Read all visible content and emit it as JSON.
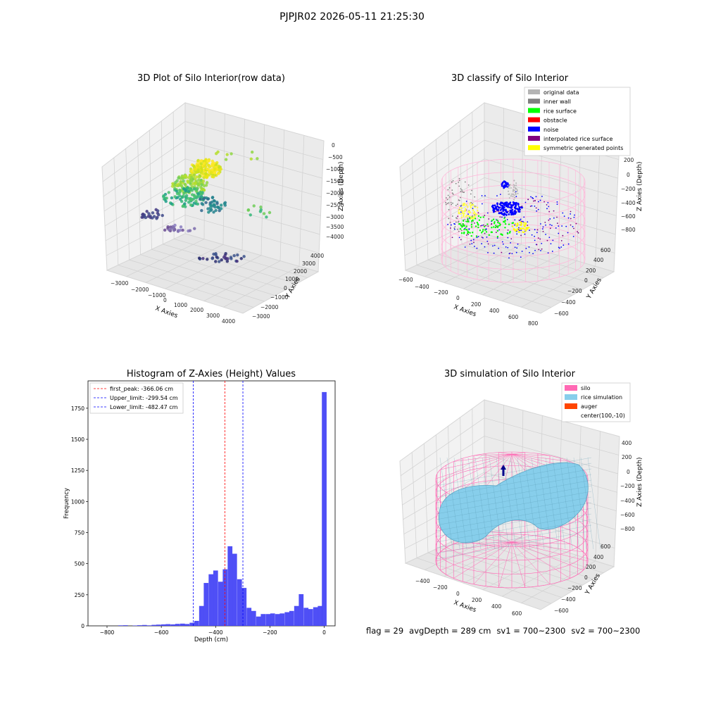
{
  "suptitle": "PJPJR02 2026-05-11 21:25:30",
  "footer": {
    "flag": "flag = 29",
    "avg_depth": "avgDepth = 289 cm",
    "sv1": "sv1 = 700~2300",
    "sv2": "sv2 = 700~2300"
  },
  "chart_data": [
    {
      "type": "scatter",
      "dimensions": 3,
      "title": "3D Plot of Silo Interior(row data)",
      "xlabel": "X Axies",
      "ylabel": "Y Axies",
      "zlabel": "Z Axies (Depth)",
      "x_ticks": [
        "−3000",
        "−2000",
        "−1000",
        "0",
        "1000",
        "2000",
        "3000",
        "4000"
      ],
      "y_ticks": [
        "−3000",
        "−2000",
        "−1000",
        "0",
        "1000",
        "2000",
        "3000",
        "4000"
      ],
      "z_ticks": [
        "0",
        "−500",
        "−1000",
        "−1500",
        "−2000",
        "−2500",
        "−3000",
        "−3500",
        "−4000"
      ],
      "xlim": [
        -3500,
        4500
      ],
      "ylim": [
        -3500,
        4500
      ],
      "zlim": [
        -4000,
        0
      ],
      "grid": true,
      "colormap": "viridis"
    },
    {
      "type": "scatter",
      "dimensions": 3,
      "title": "3D classify of Silo Interior",
      "xlabel": "X Axies",
      "ylabel": "Y Axies",
      "zlabel": "Z Axies (Depth)",
      "x_ticks": [
        "−600",
        "−400",
        "−200",
        "0",
        "200",
        "400",
        "600",
        "800"
      ],
      "y_ticks": [
        "−600",
        "−400",
        "−200",
        "0",
        "200",
        "400",
        "600"
      ],
      "z_ticks": [
        "200",
        "0",
        "−200",
        "−400",
        "−600",
        "−800"
      ],
      "grid": true,
      "legend_position": "top-right",
      "legend": [
        {
          "label": "original data",
          "color": "#b4b4b4"
        },
        {
          "label": "inner wall",
          "color": "#808080"
        },
        {
          "label": "rice surface",
          "color": "#00ff00"
        },
        {
          "label": "obstacle",
          "color": "#ff0000"
        },
        {
          "label": "noise",
          "color": "#0000ff"
        },
        {
          "label": "interpolated rice surface",
          "color": "#800080"
        },
        {
          "label": "symmetric generated points",
          "color": "#ffff00"
        }
      ]
    },
    {
      "type": "bar",
      "title": "Histogram of Z-Axies (Height) Values",
      "xlabel": "Depth (cm)",
      "ylabel": "Frequency",
      "xlim": [
        -870,
        40
      ],
      "ylim": [
        0,
        1970
      ],
      "x_ticks": [
        -800,
        -600,
        -400,
        -200,
        0
      ],
      "x_tick_labels": [
        "−800",
        "−600",
        "−400",
        "−200",
        "0"
      ],
      "y_ticks": [
        0,
        250,
        500,
        750,
        1000,
        1250,
        1500,
        1750
      ],
      "bar_color": "#4646f5",
      "bin_width": 17.5,
      "bins": [
        {
          "x": -750,
          "v": 4
        },
        {
          "x": -732,
          "v": 5
        },
        {
          "x": -697,
          "v": 3
        },
        {
          "x": -680,
          "v": 5
        },
        {
          "x": -662,
          "v": 7
        },
        {
          "x": -645,
          "v": 4
        },
        {
          "x": -627,
          "v": 8
        },
        {
          "x": -610,
          "v": 10
        },
        {
          "x": -592,
          "v": 12
        },
        {
          "x": -575,
          "v": 14
        },
        {
          "x": -557,
          "v": 12
        },
        {
          "x": -540,
          "v": 16
        },
        {
          "x": -522,
          "v": 18
        },
        {
          "x": -505,
          "v": 15
        },
        {
          "x": -487,
          "v": 25
        },
        {
          "x": -470,
          "v": 40
        },
        {
          "x": -452,
          "v": 160
        },
        {
          "x": -435,
          "v": 345
        },
        {
          "x": -417,
          "v": 415
        },
        {
          "x": -400,
          "v": 445
        },
        {
          "x": -382,
          "v": 355
        },
        {
          "x": -365,
          "v": 455
        },
        {
          "x": -347,
          "v": 640
        },
        {
          "x": -330,
          "v": 580
        },
        {
          "x": -312,
          "v": 375
        },
        {
          "x": -295,
          "v": 305
        },
        {
          "x": -277,
          "v": 145
        },
        {
          "x": -260,
          "v": 120
        },
        {
          "x": -242,
          "v": 75
        },
        {
          "x": -225,
          "v": 95
        },
        {
          "x": -207,
          "v": 95
        },
        {
          "x": -190,
          "v": 100
        },
        {
          "x": -172,
          "v": 95
        },
        {
          "x": -155,
          "v": 100
        },
        {
          "x": -137,
          "v": 110
        },
        {
          "x": -120,
          "v": 120
        },
        {
          "x": -102,
          "v": 160
        },
        {
          "x": -85,
          "v": 255
        },
        {
          "x": -67,
          "v": 145
        },
        {
          "x": -50,
          "v": 135
        },
        {
          "x": -32,
          "v": 150
        },
        {
          "x": -15,
          "v": 160
        },
        {
          "x": 0,
          "v": 1880
        }
      ],
      "vlines": [
        {
          "label": "first_peak: -366.06 cm",
          "x": -366.06,
          "color": "#ff0000"
        },
        {
          "label": "Upper_limit: -299.54 cm",
          "x": -299.54,
          "color": "#0000ff"
        },
        {
          "label": "Lower_limit: -482.47 cm",
          "x": -482.47,
          "color": "#0000ff"
        }
      ],
      "legend_position": "top-left"
    },
    {
      "type": "surface",
      "dimensions": 3,
      "title": "3D simulation of Silo Interior",
      "xlabel": "X Axies",
      "ylabel": "Y Axies",
      "zlabel": "Z Axies (Depth)",
      "x_ticks": [
        "−400",
        "−200",
        "0",
        "200",
        "400",
        "600"
      ],
      "y_ticks": [
        "−600",
        "−400",
        "−200",
        "0",
        "200",
        "400",
        "600"
      ],
      "z_ticks": [
        "400",
        "200",
        "0",
        "−200",
        "−400",
        "−600",
        "−800"
      ],
      "grid": true,
      "legend_position": "top-right",
      "legend": [
        {
          "label": "silo",
          "color": "#ff69b4"
        },
        {
          "label": "rice simulation",
          "color": "#87ceeb"
        },
        {
          "label": "auger",
          "color": "#ff4500"
        },
        {
          "label": "center(100,-10)",
          "color": ""
        }
      ]
    }
  ]
}
